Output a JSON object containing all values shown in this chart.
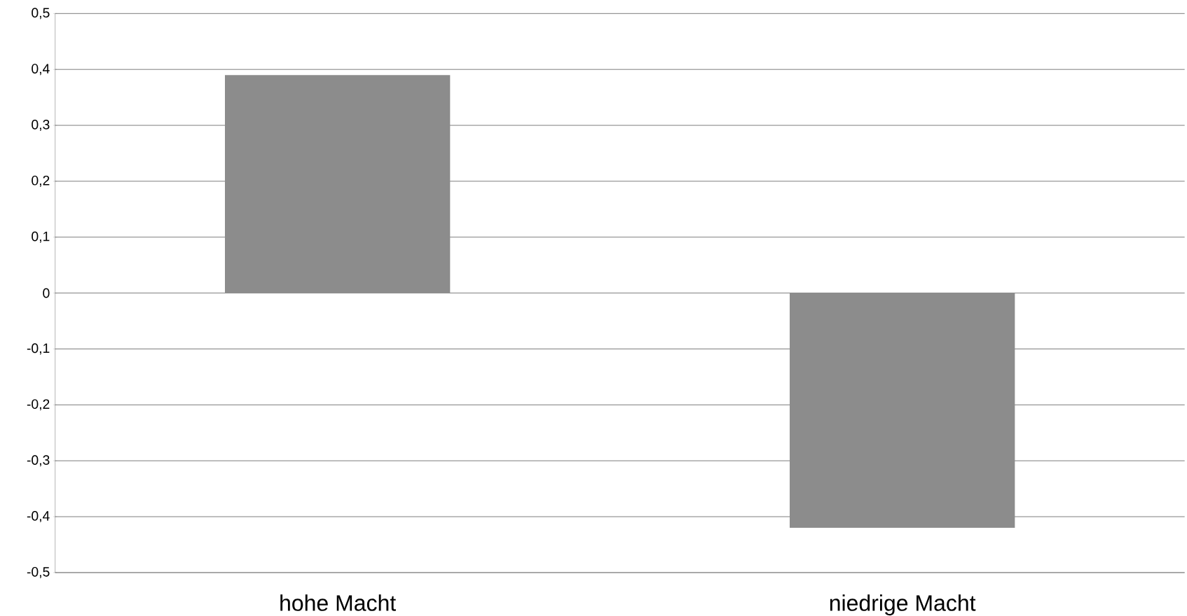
{
  "chart_data": {
    "type": "bar",
    "categories": [
      "hohe Macht",
      "niedrige Macht"
    ],
    "values": [
      0.39,
      -0.42
    ],
    "color": "#8c8c8c",
    "ylim": [
      -0.5,
      0.5
    ],
    "yticks": [
      {
        "value": -0.5,
        "label": "-0,5"
      },
      {
        "value": -0.4,
        "label": "-0,4"
      },
      {
        "value": -0.3,
        "label": "-0,3"
      },
      {
        "value": -0.2,
        "label": "-0,2"
      },
      {
        "value": -0.1,
        "label": "-0,1"
      },
      0,
      {
        "value": 0.1,
        "label": "0,1"
      },
      {
        "value": 0.2,
        "label": "0,2"
      },
      {
        "value": 0.3,
        "label": "0,3"
      },
      {
        "value": 0.4,
        "label": "0,4"
      },
      {
        "value": 0.5,
        "label": "0,5"
      }
    ],
    "grid": "y"
  }
}
